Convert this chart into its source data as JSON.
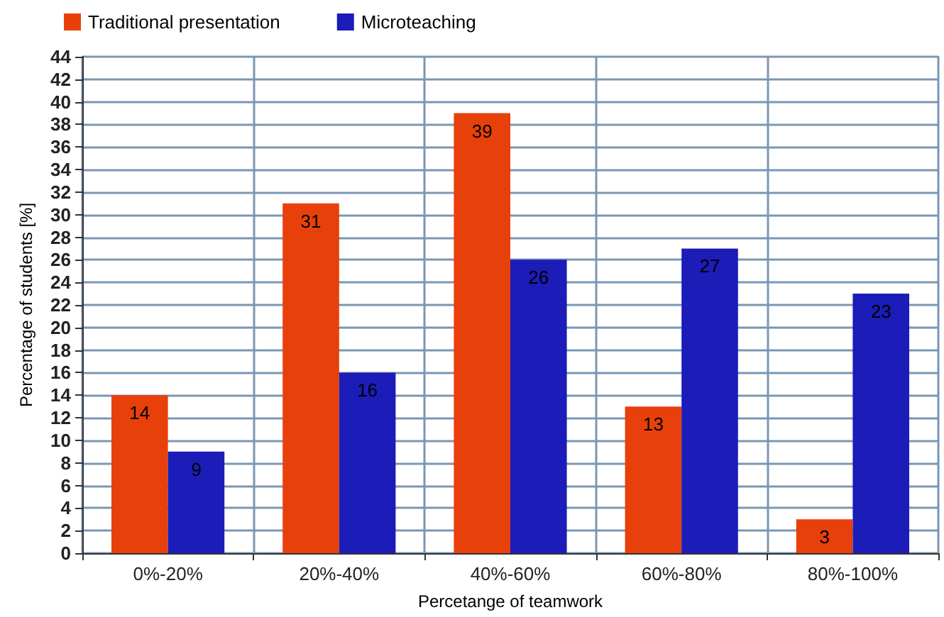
{
  "chart_data": {
    "type": "bar",
    "xlabel": "Percetange of teamwork",
    "ylabel": "Percentage of students [%]",
    "categories": [
      "0%-20%",
      "20%-40%",
      "40%-60%",
      "60%-80%",
      "80%-100%"
    ],
    "series": [
      {
        "name": "Traditional presentation",
        "color": "#e8400a",
        "values": [
          14,
          31,
          39,
          13,
          3
        ]
      },
      {
        "name": "Microteaching",
        "color": "#1c1cb8",
        "values": [
          9,
          16,
          26,
          27,
          23
        ]
      }
    ],
    "ylim": [
      0,
      44
    ],
    "yticks": [
      0,
      2,
      4,
      6,
      8,
      10,
      12,
      14,
      16,
      18,
      20,
      22,
      24,
      26,
      28,
      30,
      32,
      34,
      36,
      38,
      40,
      42,
      44
    ],
    "grid": true,
    "legend": "top left",
    "data_labels": true
  }
}
